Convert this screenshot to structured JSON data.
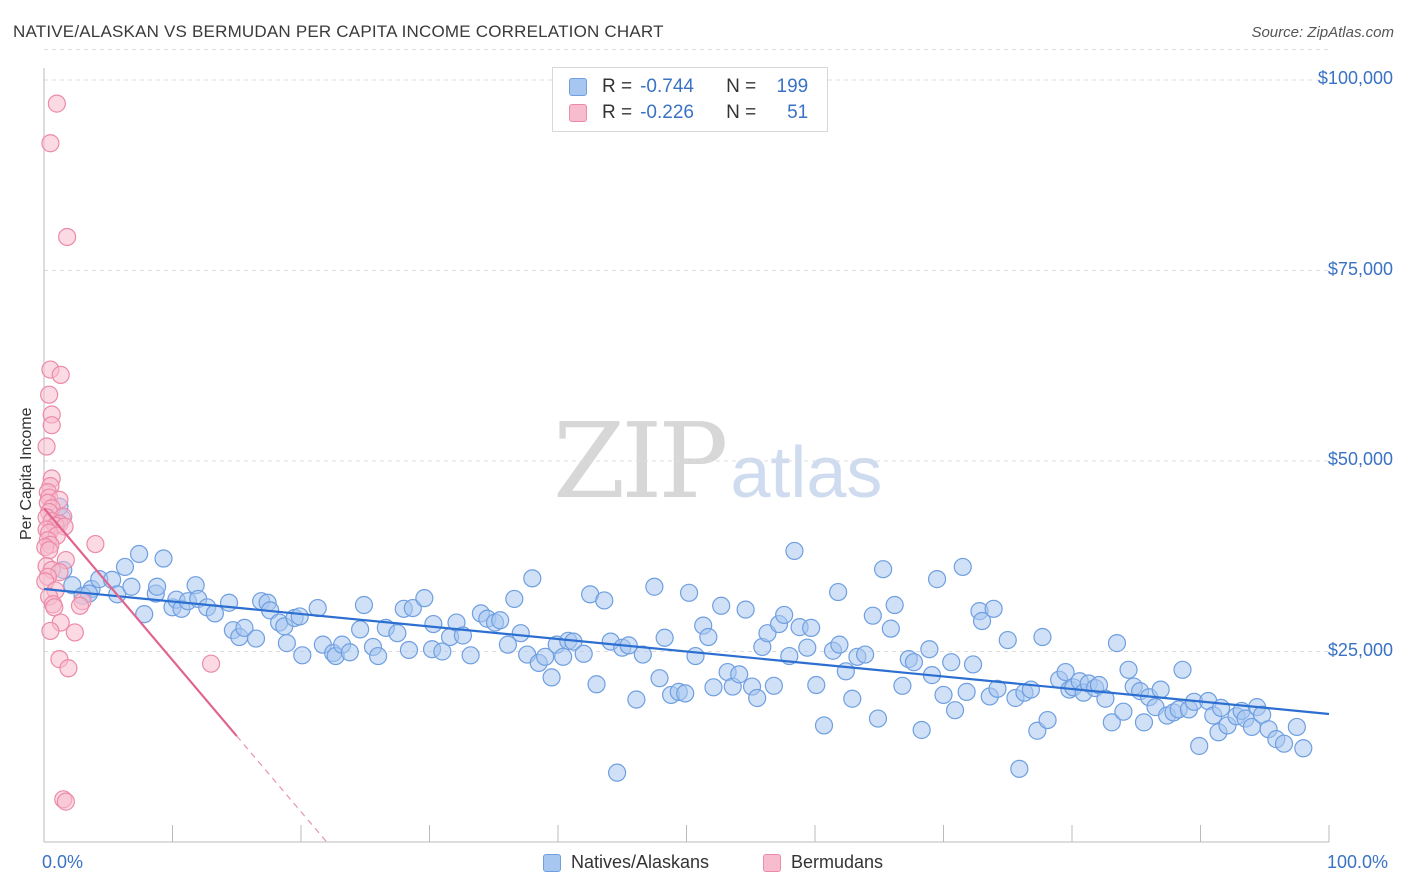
{
  "title": "NATIVE/ALASKAN VS BERMUDAN PER CAPITA INCOME CORRELATION CHART",
  "source": "Source: ZipAtlas.com",
  "watermark": {
    "zip": "ZIP",
    "atlas": "atlas"
  },
  "stats": [
    {
      "r_label": "R =",
      "r_value": "-0.744",
      "n_label": "N =",
      "n_value": "199",
      "color": "#a7c6f0",
      "border": "#6f9fe0"
    },
    {
      "r_label": "R =",
      "r_value": "-0.226",
      "n_label": "N =",
      "n_value": "51",
      "color": "#f7bccd",
      "border": "#ec8aa8"
    }
  ],
  "legend": [
    {
      "label": "Natives/Alaskans",
      "color": "#a7c6f0",
      "border": "#6f9fe0"
    },
    {
      "label": "Bermudans",
      "color": "#f7bccd",
      "border": "#ec8aa8"
    }
  ],
  "chart_data": {
    "type": "scatter",
    "title": "NATIVE/ALASKAN VS BERMUDAN PER CAPITA INCOME CORRELATION CHART",
    "xlabel": "",
    "ylabel": "Per Capita Income",
    "xlim": [
      0,
      100
    ],
    "ylim": [
      0,
      105000
    ],
    "x_tick_labels": [
      "0.0%",
      "100.0%"
    ],
    "y_ticks": [
      25000,
      50000,
      75000,
      100000
    ],
    "y_tick_labels": [
      "$25,000",
      "$50,000",
      "$75,000",
      "$100,000"
    ],
    "grid": "horizontal dashed",
    "legend_position": "bottom-center",
    "series": [
      {
        "name": "Natives/Alaskans",
        "color": "#6f9fe0",
        "fill": "#a7c6f0",
        "trend": {
          "x": [
            0,
            100
          ],
          "y": [
            33200,
            16800
          ],
          "color": "#2c6fd1"
        },
        "points": [
          [
            1.0,
            41800
          ],
          [
            1.4,
            42500
          ],
          [
            1.2,
            44000
          ],
          [
            1.5,
            35700
          ],
          [
            2.2,
            33700
          ],
          [
            3.7,
            33200
          ],
          [
            3.0,
            32300
          ],
          [
            3.5,
            32600
          ],
          [
            4.3,
            34500
          ],
          [
            5.3,
            34400
          ],
          [
            5.7,
            32500
          ],
          [
            6.3,
            36100
          ],
          [
            6.8,
            33500
          ],
          [
            7.4,
            37800
          ],
          [
            7.8,
            29900
          ],
          [
            8.7,
            32600
          ],
          [
            8.8,
            33500
          ],
          [
            9.3,
            37200
          ],
          [
            10.0,
            30800
          ],
          [
            10.3,
            31800
          ],
          [
            10.7,
            30600
          ],
          [
            11.2,
            31600
          ],
          [
            11.8,
            33700
          ],
          [
            12.0,
            31900
          ],
          [
            12.7,
            30800
          ],
          [
            13.3,
            30000
          ],
          [
            14.4,
            31400
          ],
          [
            14.7,
            27800
          ],
          [
            15.2,
            26900
          ],
          [
            15.6,
            28100
          ],
          [
            16.5,
            26700
          ],
          [
            16.9,
            31600
          ],
          [
            17.4,
            31400
          ],
          [
            17.6,
            30400
          ],
          [
            18.3,
            28800
          ],
          [
            18.7,
            28300
          ],
          [
            18.9,
            26100
          ],
          [
            19.5,
            29400
          ],
          [
            19.9,
            29600
          ],
          [
            20.1,
            24500
          ],
          [
            21.3,
            30700
          ],
          [
            21.7,
            25900
          ],
          [
            22.5,
            24800
          ],
          [
            22.7,
            24400
          ],
          [
            23.2,
            25900
          ],
          [
            23.8,
            24900
          ],
          [
            24.6,
            27900
          ],
          [
            24.9,
            31100
          ],
          [
            25.6,
            25600
          ],
          [
            26.0,
            24400
          ],
          [
            26.6,
            28100
          ],
          [
            27.5,
            27400
          ],
          [
            28.0,
            30600
          ],
          [
            28.4,
            25200
          ],
          [
            28.7,
            30700
          ],
          [
            29.6,
            32000
          ],
          [
            30.2,
            25300
          ],
          [
            30.3,
            28600
          ],
          [
            31.0,
            25000
          ],
          [
            31.6,
            26900
          ],
          [
            32.1,
            28800
          ],
          [
            32.6,
            27100
          ],
          [
            33.2,
            24500
          ],
          [
            34.0,
            30000
          ],
          [
            34.5,
            29300
          ],
          [
            35.1,
            28800
          ],
          [
            35.5,
            29100
          ],
          [
            36.1,
            25900
          ],
          [
            36.6,
            31900
          ],
          [
            37.1,
            27400
          ],
          [
            37.6,
            24600
          ],
          [
            38.0,
            34600
          ],
          [
            38.5,
            23500
          ],
          [
            39.0,
            24300
          ],
          [
            39.5,
            21600
          ],
          [
            39.9,
            25900
          ],
          [
            40.4,
            24300
          ],
          [
            40.8,
            26400
          ],
          [
            41.2,
            26300
          ],
          [
            42.0,
            24700
          ],
          [
            42.5,
            32500
          ],
          [
            43.0,
            20700
          ],
          [
            43.6,
            31700
          ],
          [
            44.1,
            26300
          ],
          [
            44.6,
            9100
          ],
          [
            45.0,
            25500
          ],
          [
            45.5,
            25800
          ],
          [
            46.1,
            18700
          ],
          [
            46.6,
            24600
          ],
          [
            47.5,
            33500
          ],
          [
            47.9,
            21500
          ],
          [
            48.3,
            26800
          ],
          [
            48.8,
            19300
          ],
          [
            49.4,
            19700
          ],
          [
            49.9,
            19500
          ],
          [
            50.2,
            32700
          ],
          [
            50.7,
            24400
          ],
          [
            51.3,
            28400
          ],
          [
            51.7,
            26900
          ],
          [
            52.1,
            20300
          ],
          [
            52.7,
            31000
          ],
          [
            53.2,
            22300
          ],
          [
            53.6,
            20400
          ],
          [
            54.1,
            22000
          ],
          [
            54.6,
            30500
          ],
          [
            55.1,
            20400
          ],
          [
            55.5,
            18900
          ],
          [
            55.9,
            25600
          ],
          [
            56.3,
            27400
          ],
          [
            56.8,
            20500
          ],
          [
            57.2,
            28600
          ],
          [
            57.6,
            29800
          ],
          [
            58.0,
            24400
          ],
          [
            58.4,
            38200
          ],
          [
            58.8,
            28200
          ],
          [
            59.4,
            25500
          ],
          [
            59.7,
            28100
          ],
          [
            60.1,
            20600
          ],
          [
            60.7,
            15300
          ],
          [
            61.4,
            25100
          ],
          [
            61.8,
            32800
          ],
          [
            61.9,
            25900
          ],
          [
            62.4,
            22400
          ],
          [
            62.9,
            18800
          ],
          [
            63.3,
            24300
          ],
          [
            63.9,
            24600
          ],
          [
            64.5,
            29700
          ],
          [
            64.9,
            16200
          ],
          [
            65.3,
            35800
          ],
          [
            65.9,
            28000
          ],
          [
            66.2,
            31100
          ],
          [
            66.8,
            20500
          ],
          [
            67.3,
            24000
          ],
          [
            67.7,
            23600
          ],
          [
            68.3,
            14700
          ],
          [
            68.9,
            25300
          ],
          [
            69.1,
            21900
          ],
          [
            69.5,
            34500
          ],
          [
            70.0,
            19300
          ],
          [
            70.6,
            23600
          ],
          [
            70.9,
            17300
          ],
          [
            71.5,
            36100
          ],
          [
            71.8,
            19700
          ],
          [
            72.3,
            23300
          ],
          [
            72.8,
            30300
          ],
          [
            73.0,
            29000
          ],
          [
            73.6,
            19100
          ],
          [
            73.9,
            30600
          ],
          [
            74.2,
            20100
          ],
          [
            75.0,
            26500
          ],
          [
            75.6,
            18900
          ],
          [
            75.9,
            9600
          ],
          [
            76.3,
            19600
          ],
          [
            76.8,
            20000
          ],
          [
            77.3,
            14600
          ],
          [
            77.7,
            26900
          ],
          [
            78.1,
            16000
          ],
          [
            79.0,
            21300
          ],
          [
            79.5,
            22300
          ],
          [
            79.8,
            20000
          ],
          [
            80.1,
            20300
          ],
          [
            80.6,
            21100
          ],
          [
            80.9,
            19600
          ],
          [
            81.3,
            20800
          ],
          [
            81.8,
            20200
          ],
          [
            82.1,
            20600
          ],
          [
            82.6,
            18800
          ],
          [
            83.1,
            15700
          ],
          [
            83.5,
            26100
          ],
          [
            84.0,
            17100
          ],
          [
            84.4,
            22600
          ],
          [
            84.8,
            20400
          ],
          [
            85.3,
            19800
          ],
          [
            85.6,
            15700
          ],
          [
            86.0,
            19000
          ],
          [
            86.5,
            17700
          ],
          [
            86.9,
            20000
          ],
          [
            87.4,
            16600
          ],
          [
            87.9,
            17000
          ],
          [
            88.3,
            17400
          ],
          [
            88.6,
            22600
          ],
          [
            89.1,
            17400
          ],
          [
            89.5,
            18400
          ],
          [
            89.9,
            12600
          ],
          [
            90.6,
            18500
          ],
          [
            91.0,
            16600
          ],
          [
            91.4,
            14400
          ],
          [
            91.6,
            17600
          ],
          [
            92.1,
            15300
          ],
          [
            92.8,
            16500
          ],
          [
            93.2,
            17200
          ],
          [
            93.5,
            16200
          ],
          [
            94.0,
            15100
          ],
          [
            94.4,
            17700
          ],
          [
            94.8,
            16700
          ],
          [
            95.3,
            14800
          ],
          [
            95.9,
            13500
          ],
          [
            96.5,
            12900
          ],
          [
            97.5,
            15100
          ],
          [
            98.0,
            12300
          ]
        ]
      },
      {
        "name": "Bermudans",
        "color": "#ec8aa8",
        "fill": "#f7bccd",
        "trend": {
          "x": [
            0,
            15
          ],
          "y": [
            43800,
            13900
          ],
          "color": "#e0648f",
          "dashed_extension": {
            "x": [
              15,
              22
            ],
            "y": [
              13900,
              0
            ]
          }
        },
        "points": [
          [
            1.0,
            96900
          ],
          [
            0.5,
            91700
          ],
          [
            1.8,
            79400
          ],
          [
            0.5,
            62000
          ],
          [
            1.3,
            61300
          ],
          [
            0.4,
            58700
          ],
          [
            0.6,
            56100
          ],
          [
            0.6,
            54700
          ],
          [
            0.2,
            51900
          ],
          [
            0.6,
            47700
          ],
          [
            0.5,
            46700
          ],
          [
            0.3,
            45900
          ],
          [
            0.4,
            45200
          ],
          [
            1.2,
            44900
          ],
          [
            0.3,
            44500
          ],
          [
            0.6,
            43800
          ],
          [
            0.4,
            43300
          ],
          [
            0.2,
            42600
          ],
          [
            1.5,
            42700
          ],
          [
            0.6,
            42100
          ],
          [
            1.2,
            41800
          ],
          [
            0.9,
            41500
          ],
          [
            1.6,
            41400
          ],
          [
            0.2,
            41000
          ],
          [
            0.4,
            40600
          ],
          [
            1.0,
            40200
          ],
          [
            0.3,
            39600
          ],
          [
            0.5,
            39000
          ],
          [
            0.1,
            38700
          ],
          [
            4.0,
            39100
          ],
          [
            0.4,
            38300
          ],
          [
            1.7,
            37000
          ],
          [
            0.2,
            36200
          ],
          [
            0.6,
            35700
          ],
          [
            1.2,
            35400
          ],
          [
            0.3,
            34800
          ],
          [
            0.1,
            34200
          ],
          [
            0.9,
            33000
          ],
          [
            0.4,
            32200
          ],
          [
            3.0,
            31600
          ],
          [
            0.7,
            31200
          ],
          [
            0.8,
            30800
          ],
          [
            2.8,
            31000
          ],
          [
            1.3,
            28800
          ],
          [
            0.5,
            27700
          ],
          [
            2.4,
            27500
          ],
          [
            1.2,
            24000
          ],
          [
            1.9,
            22800
          ],
          [
            13.0,
            23400
          ],
          [
            1.5,
            5600
          ],
          [
            1.7,
            5300
          ]
        ]
      }
    ]
  }
}
